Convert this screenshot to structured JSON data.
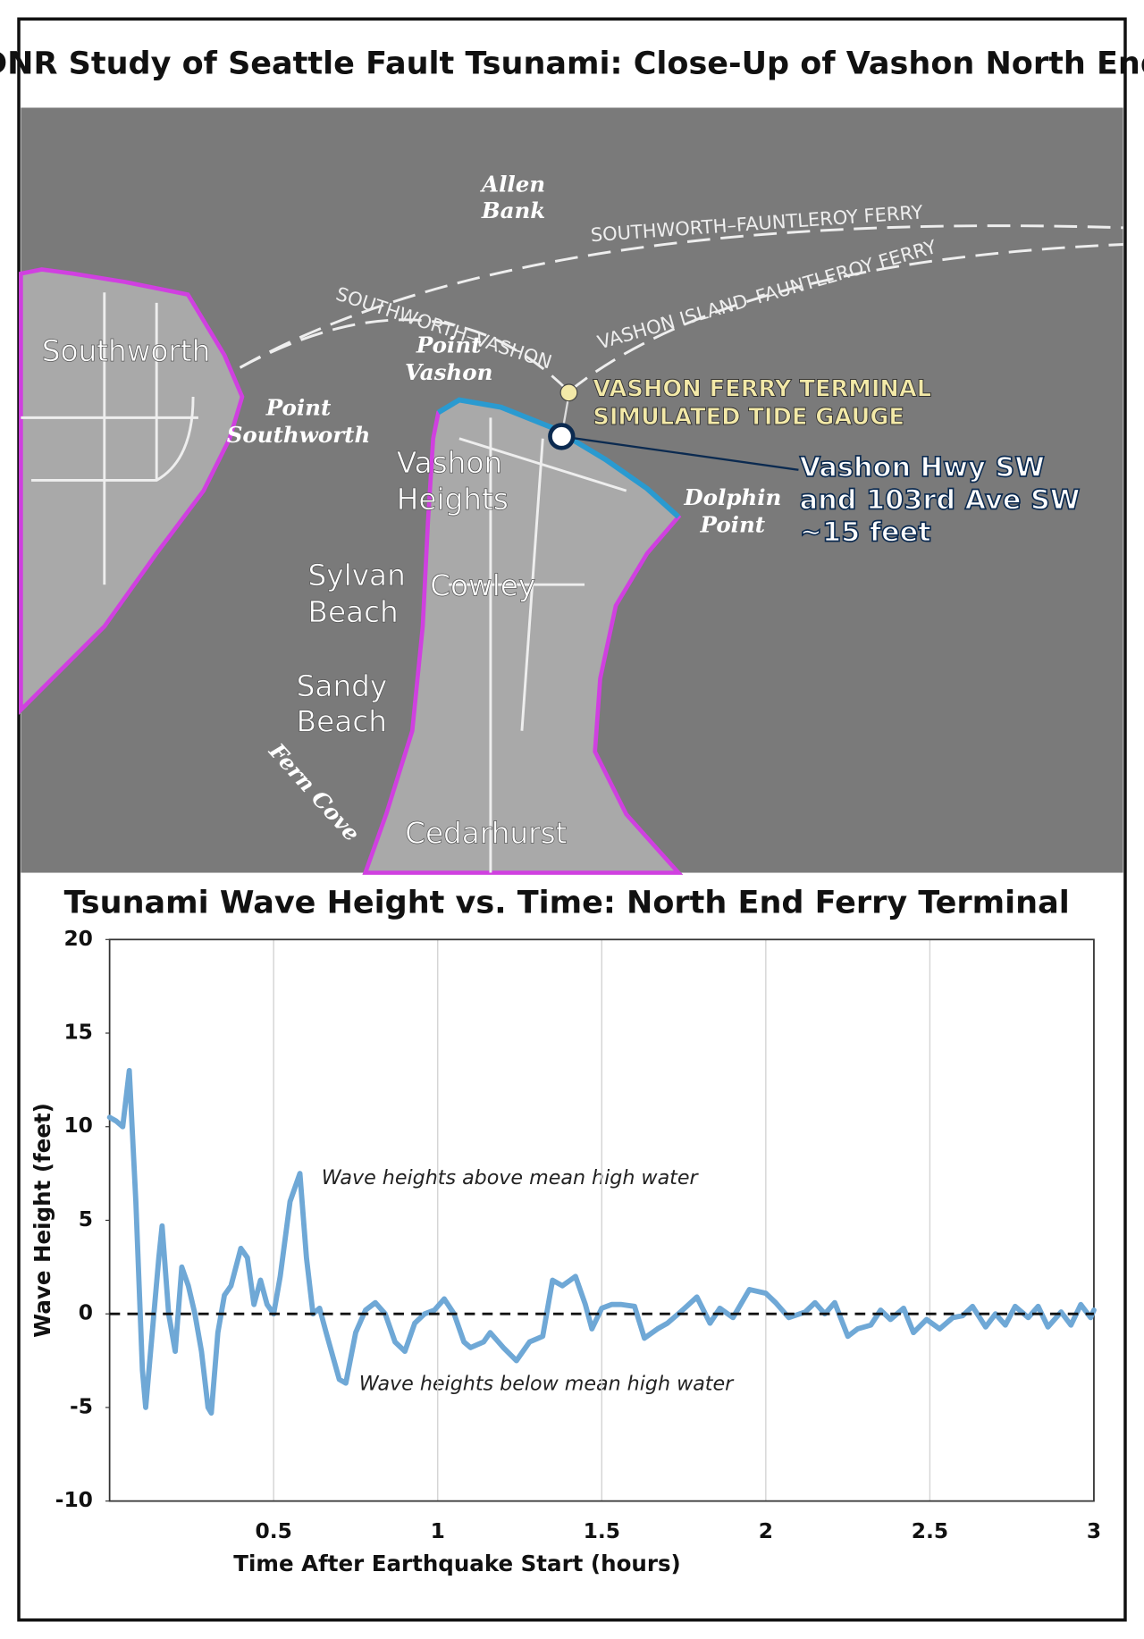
{
  "title": "DNR Study of Seattle Fault Tsunami: Close-Up of Vashon North End",
  "map": {
    "labels": [
      [
        "Allen",
        "Bank"
      ],
      [
        "SOUTHWORTH–FAUNTLEROY FERRY"
      ],
      [
        "VASHON ISLAND–FAUNTLEROY FERRY"
      ],
      [
        "SOUTHWORTH–VASHON"
      ],
      [
        "Southworth"
      ],
      [
        "Point",
        "Vashon"
      ],
      [
        "Point",
        "Southworth"
      ],
      [
        "VASHON FERRY TERMINAL",
        "SIMULATED TIDE GAUGE"
      ],
      [
        "Vashon",
        "Heights"
      ],
      [
        "Dolphin",
        "Point"
      ],
      [
        "Vashon Hwy SW",
        "and 103rd Ave SW",
        "~15 feet"
      ],
      [
        "Sylvan",
        "Beach"
      ],
      [
        "Cowley"
      ],
      [
        "Sandy",
        "Beach"
      ],
      [
        "Fern Cove"
      ],
      [
        "Cedarhurst"
      ]
    ]
  },
  "chart_data": {
    "type": "line",
    "title": "Tsunami Wave Height vs. Time: North End Ferry Terminal",
    "x_label": "Time After Earthquake Start (hours)",
    "y_label": "Wave Height (feet)",
    "annotations": [
      "Wave heights above mean high water",
      "Wave heights below mean high water"
    ],
    "color": "#6fa8d6",
    "xlim": [
      0,
      3
    ],
    "xticks": [
      0.5,
      1,
      1.5,
      2,
      2.5,
      3
    ],
    "ylim": [
      -10,
      20
    ],
    "yticks": [
      -10,
      -5,
      0,
      5,
      10,
      15,
      20
    ],
    "grid": true,
    "reference_line": 0,
    "x": [
      0,
      0.02,
      0.04,
      0.06,
      0.08,
      0.1,
      0.11,
      0.13,
      0.15,
      0.16,
      0.18,
      0.2,
      0.22,
      0.24,
      0.26,
      0.28,
      0.3,
      0.31,
      0.33,
      0.35,
      0.37,
      0.4,
      0.42,
      0.44,
      0.46,
      0.48,
      0.5,
      0.52,
      0.55,
      0.58,
      0.6,
      0.62,
      0.64,
      0.66,
      0.7,
      0.72,
      0.75,
      0.78,
      0.81,
      0.84,
      0.87,
      0.9,
      0.93,
      0.96,
      0.99,
      1.02,
      1.05,
      1.08,
      1.1,
      1.14,
      1.16,
      1.2,
      1.24,
      1.28,
      1.32,
      1.35,
      1.38,
      1.42,
      1.45,
      1.47,
      1.5,
      1.53,
      1.56,
      1.6,
      1.63,
      1.67,
      1.7,
      1.74,
      1.79,
      1.83,
      1.86,
      1.9,
      1.95,
      2.0,
      2.03,
      2.07,
      2.12,
      2.15,
      2.18,
      2.21,
      2.25,
      2.28,
      2.32,
      2.35,
      2.38,
      2.42,
      2.45,
      2.49,
      2.53,
      2.57,
      2.6,
      2.63,
      2.67,
      2.7,
      2.73,
      2.76,
      2.8,
      2.83,
      2.86,
      2.9,
      2.93,
      2.96,
      2.99,
      3.0
    ],
    "values": [
      10.5,
      10.3,
      10,
      13,
      6,
      -3,
      -5,
      -1,
      3,
      4.7,
      0,
      -2,
      2.5,
      1.5,
      0,
      -2,
      -5,
      -5.3,
      -1,
      1,
      1.5,
      3.5,
      3,
      0.5,
      1.8,
      0.5,
      0,
      2,
      6,
      7.5,
      3,
      0,
      0.3,
      -1,
      -3.5,
      -3.7,
      -1,
      0.2,
      0.6,
      0,
      -1.5,
      -2,
      -0.5,
      0,
      0.2,
      0.8,
      0,
      -1.5,
      -1.8,
      -1.5,
      -1,
      -1.8,
      -2.5,
      -1.5,
      -1.2,
      1.8,
      1.5,
      2,
      0.5,
      -0.8,
      0.3,
      0.5,
      0.5,
      0.4,
      -1.3,
      -0.8,
      -0.5,
      0.1,
      0.9,
      -0.5,
      0.3,
      -0.2,
      1.3,
      1.1,
      0.6,
      -0.2,
      0.1,
      0.6,
      0,
      0.6,
      -1.2,
      -0.8,
      -0.6,
      0.2,
      -0.3,
      0.3,
      -1,
      -0.3,
      -0.8,
      -0.2,
      -0.1,
      0.4,
      -0.7,
      0,
      -0.6,
      0.4,
      -0.2,
      0.4,
      -0.7,
      0.1,
      -0.6,
      0.5,
      -0.2,
      0.2
    ]
  }
}
